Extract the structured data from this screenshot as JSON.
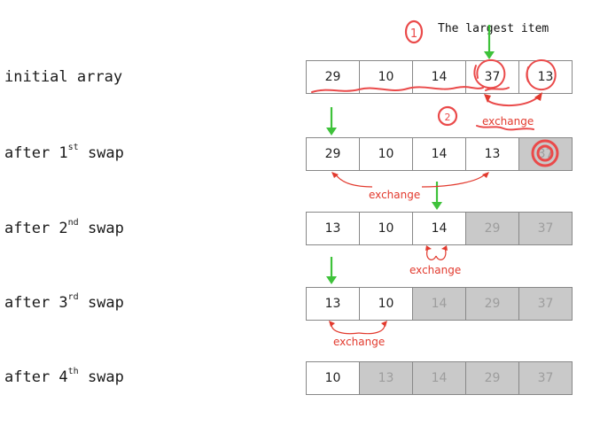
{
  "caption": "The largest item",
  "caption_marker": "1",
  "step_marker": "2",
  "rows": [
    {
      "label": "initial array",
      "ordinal": "",
      "ordinal_suffix": "",
      "label_tail": "",
      "cells": [
        "29",
        "10",
        "14",
        "37",
        "13"
      ],
      "sorted_from": 5
    },
    {
      "label": "after 1",
      "ordinal_suffix": "st",
      "label_tail": " swap",
      "cells": [
        "29",
        "10",
        "14",
        "13",
        "37"
      ],
      "sorted_from": 4
    },
    {
      "label": "after 2",
      "ordinal_suffix": "nd",
      "label_tail": " swap",
      "cells": [
        "13",
        "10",
        "14",
        "29",
        "37"
      ],
      "sorted_from": 3
    },
    {
      "label": "after 3",
      "ordinal_suffix": "rd",
      "label_tail": " swap",
      "cells": [
        "13",
        "10",
        "14",
        "29",
        "37"
      ],
      "sorted_from": 2
    },
    {
      "label": "after 4",
      "ordinal_suffix": "th",
      "label_tail": " swap",
      "cells": [
        "10",
        "13",
        "14",
        "29",
        "37"
      ],
      "sorted_from": 1
    }
  ],
  "annotations": {
    "exchange_1": "exchange",
    "exchange_2": "exchange",
    "exchange_3": "exchange",
    "exchange_4": "exchange"
  },
  "colors": {
    "annotation": "#e23a2e",
    "pointer": "#3ec23a",
    "sorted_fill": "#c9c9c9"
  }
}
